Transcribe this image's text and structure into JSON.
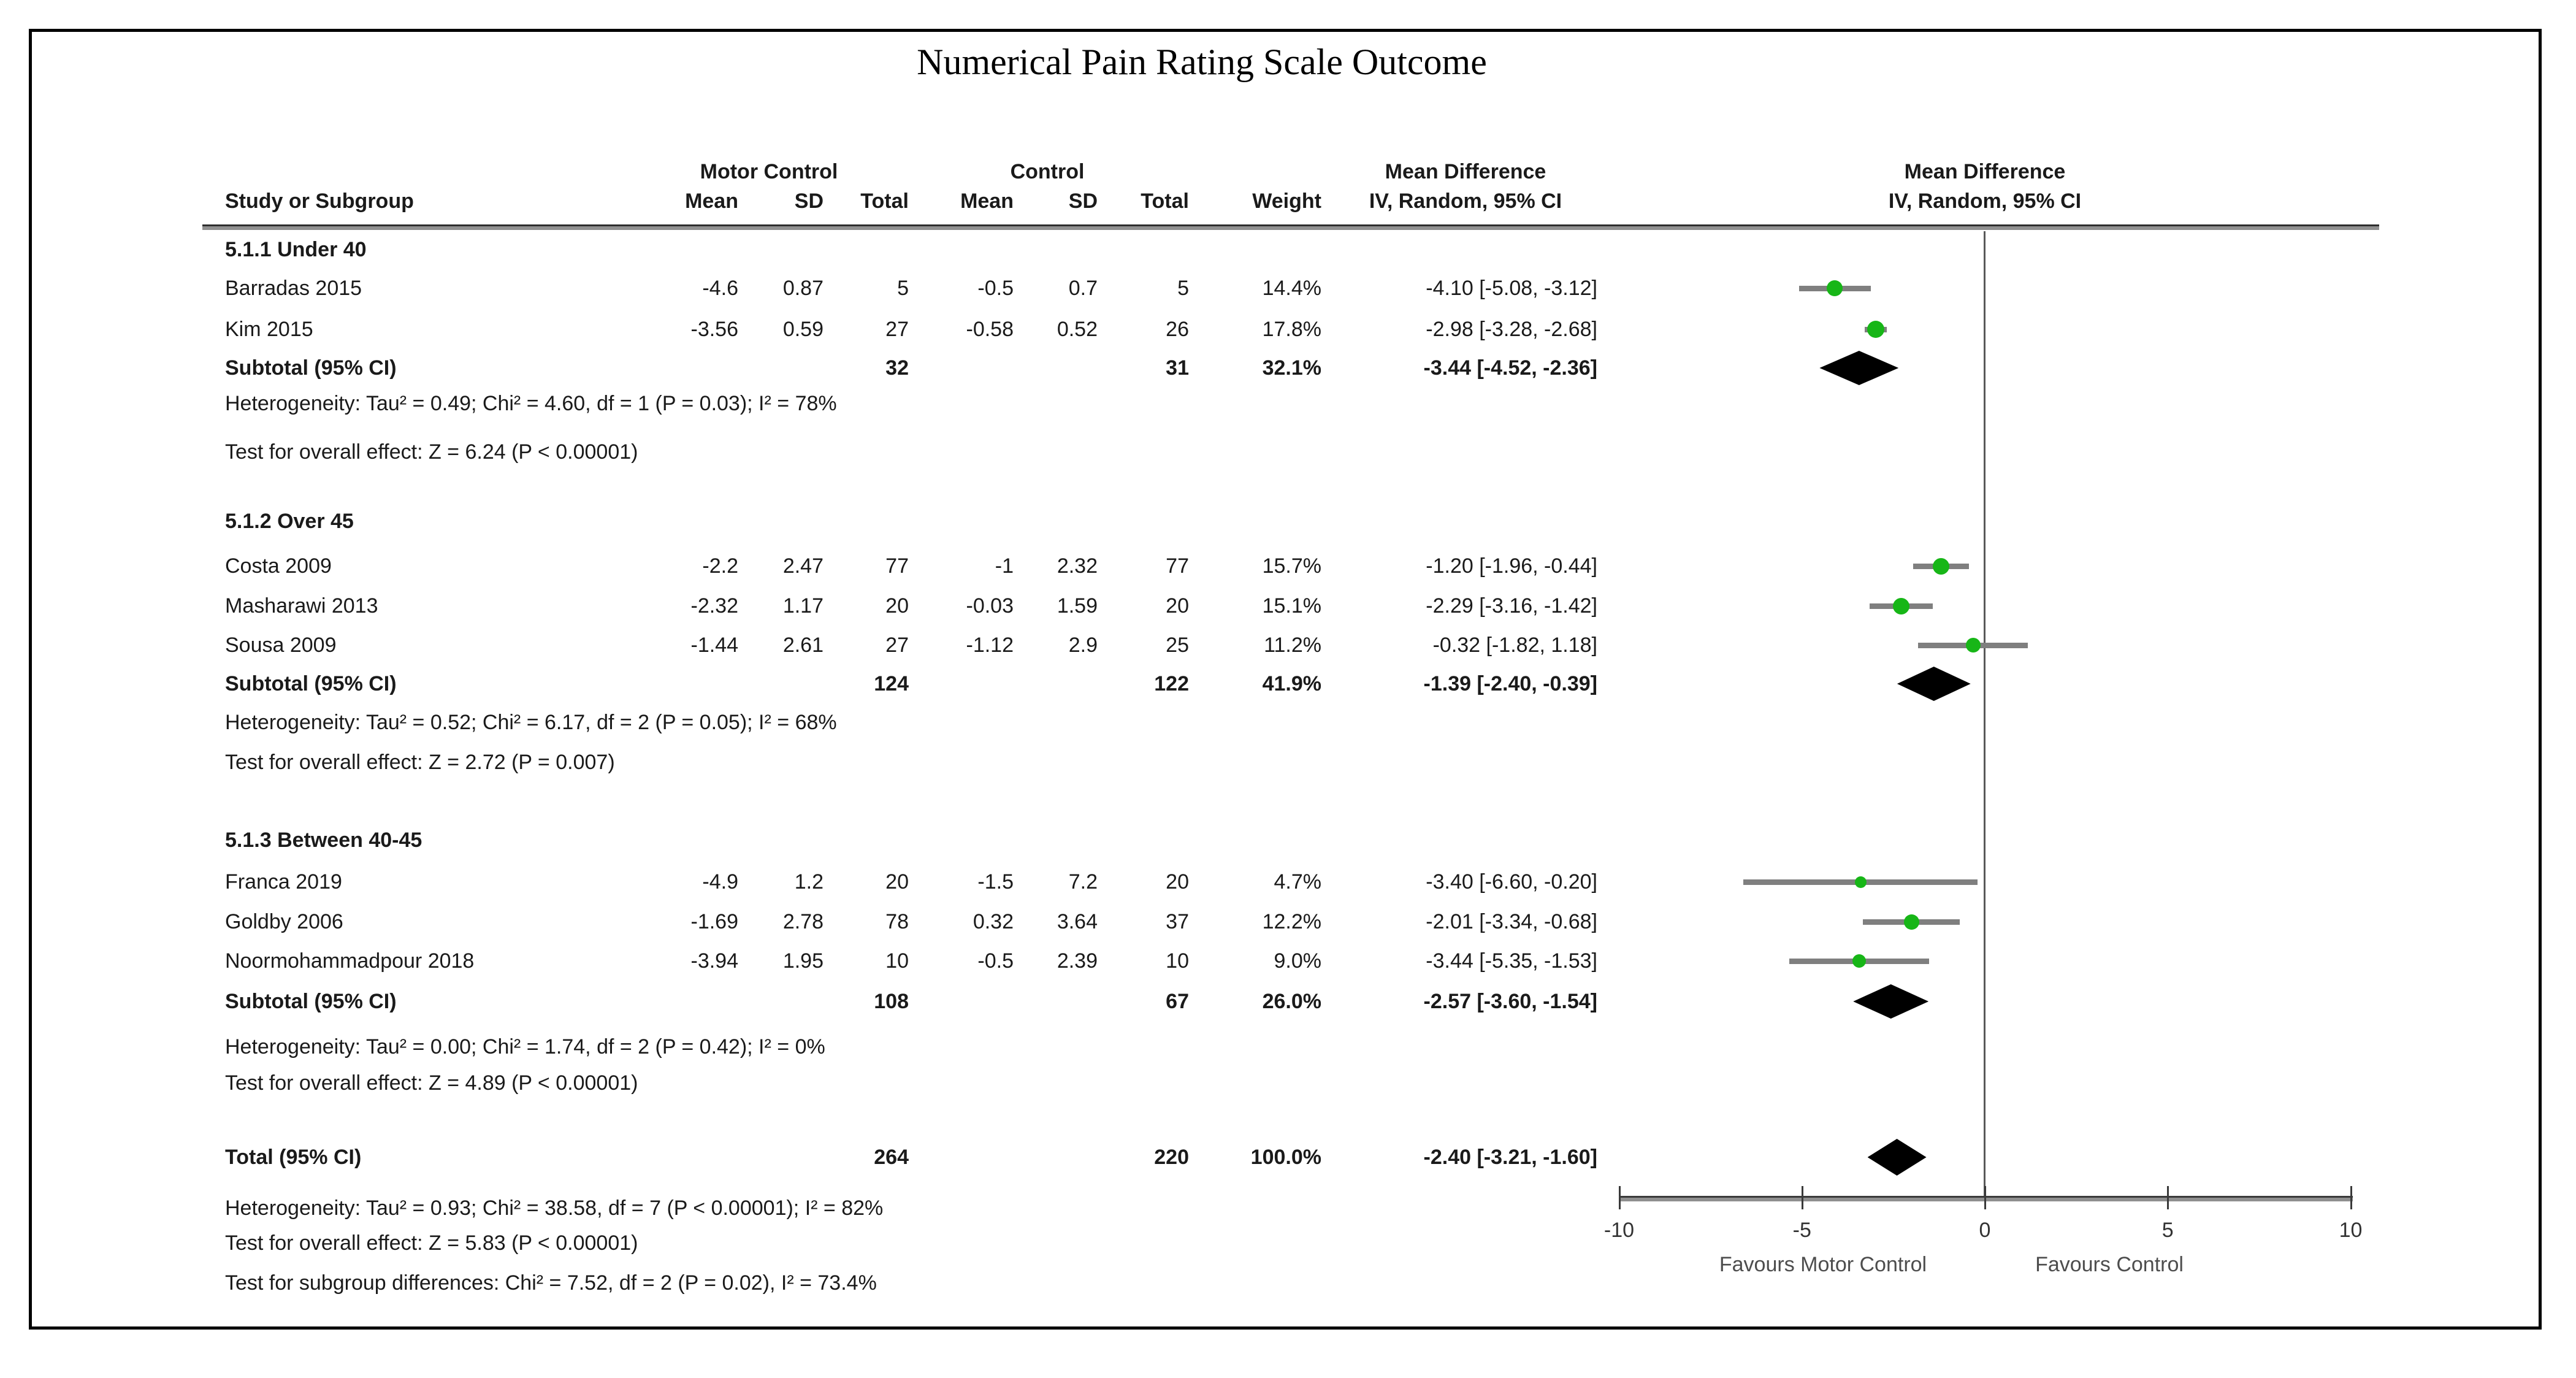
{
  "title": "Numerical Pain Rating Scale Outcome",
  "table": {
    "group_headers": {
      "motor_control": "Motor Control",
      "control": "Control",
      "mean_difference": "Mean Difference"
    },
    "col_headers": {
      "study": "Study or Subgroup",
      "mc_mean": "Mean",
      "mc_sd": "SD",
      "mc_total": "Total",
      "c_mean": "Mean",
      "c_sd": "SD",
      "c_total": "Total",
      "weight": "Weight",
      "iv": "IV, Random, 95% CI"
    }
  },
  "plot": {
    "header_line1": "Mean Difference",
    "header_line2": "IV, Random, 95% CI",
    "favours_left": "Favours Motor Control",
    "favours_right": "Favours Control"
  },
  "colors": {
    "marker_green": "#17b617",
    "ci_line_gray": "#7f7f7f",
    "diamond_black": "#000000",
    "rule_gray": "#8f8f8f"
  },
  "chart_data": {
    "type": "scatter",
    "variant": "forest-plot-mean-difference",
    "title": "Numerical Pain Rating Scale Outcome",
    "x_axis": {
      "min": -10,
      "max": 10,
      "ticks": [
        -10,
        -5,
        0,
        5,
        10
      ],
      "tick_labels": [
        "-10",
        "-5",
        "0",
        "5",
        "10"
      ]
    },
    "legend": {
      "favours_left": "Favours Motor Control",
      "favours_right": "Favours Control"
    },
    "subgroups": [
      {
        "label": "5.1.1 Under 40",
        "studies": [
          {
            "study": "Barradas 2015",
            "mc_mean": "-4.6",
            "mc_sd": "0.87",
            "mc_total": "5",
            "c_mean": "-0.5",
            "c_sd": "0.7",
            "c_total": "5",
            "weight": "14.4%",
            "weight_val": 14.4,
            "ci_text": "-4.10 [-5.08, -3.12]",
            "est": -4.1,
            "lo": -5.08,
            "hi": -3.12
          },
          {
            "study": "Kim 2015",
            "mc_mean": "-3.56",
            "mc_sd": "0.59",
            "mc_total": "27",
            "c_mean": "-0.58",
            "c_sd": "0.52",
            "c_total": "26",
            "weight": "17.8%",
            "weight_val": 17.8,
            "ci_text": "-2.98 [-3.28, -2.68]",
            "est": -2.98,
            "lo": -3.28,
            "hi": -2.68
          }
        ],
        "subtotal": {
          "label": "Subtotal (95% CI)",
          "mc_total": "32",
          "c_total": "31",
          "weight": "32.1%",
          "ci_text": "-3.44 [-4.52, -2.36]",
          "est": -3.44,
          "lo": -4.52,
          "hi": -2.36
        },
        "heterogeneity": "Heterogeneity: Tau² = 0.49; Chi² = 4.60, df = 1 (P = 0.03); I² = 78%",
        "overall_test": "Test for overall effect: Z = 6.24 (P < 0.00001)"
      },
      {
        "label": "5.1.2 Over 45",
        "studies": [
          {
            "study": "Costa 2009",
            "mc_mean": "-2.2",
            "mc_sd": "2.47",
            "mc_total": "77",
            "c_mean": "-1",
            "c_sd": "2.32",
            "c_total": "77",
            "weight": "15.7%",
            "weight_val": 15.7,
            "ci_text": "-1.20 [-1.96, -0.44]",
            "est": -1.2,
            "lo": -1.96,
            "hi": -0.44
          },
          {
            "study": "Masharawi 2013",
            "mc_mean": "-2.32",
            "mc_sd": "1.17",
            "mc_total": "20",
            "c_mean": "-0.03",
            "c_sd": "1.59",
            "c_total": "20",
            "weight": "15.1%",
            "weight_val": 15.1,
            "ci_text": "-2.29 [-3.16, -1.42]",
            "est": -2.29,
            "lo": -3.16,
            "hi": -1.42
          },
          {
            "study": "Sousa 2009",
            "mc_mean": "-1.44",
            "mc_sd": "2.61",
            "mc_total": "27",
            "c_mean": "-1.12",
            "c_sd": "2.9",
            "c_total": "25",
            "weight": "11.2%",
            "weight_val": 11.2,
            "ci_text": "-0.32 [-1.82, 1.18]",
            "est": -0.32,
            "lo": -1.82,
            "hi": 1.18
          }
        ],
        "subtotal": {
          "label": "Subtotal (95% CI)",
          "mc_total": "124",
          "c_total": "122",
          "weight": "41.9%",
          "ci_text": "-1.39 [-2.40, -0.39]",
          "est": -1.39,
          "lo": -2.4,
          "hi": -0.39
        },
        "heterogeneity": "Heterogeneity: Tau² = 0.52; Chi² = 6.17, df = 2 (P = 0.05); I² = 68%",
        "overall_test": "Test for overall effect: Z = 2.72 (P = 0.007)"
      },
      {
        "label": "5.1.3 Between 40-45",
        "studies": [
          {
            "study": "Franca 2019",
            "mc_mean": "-4.9",
            "mc_sd": "1.2",
            "mc_total": "20",
            "c_mean": "-1.5",
            "c_sd": "7.2",
            "c_total": "20",
            "weight": "4.7%",
            "weight_val": 4.7,
            "ci_text": "-3.40 [-6.60, -0.20]",
            "est": -3.4,
            "lo": -6.6,
            "hi": -0.2
          },
          {
            "study": "Goldby 2006",
            "mc_mean": "-1.69",
            "mc_sd": "2.78",
            "mc_total": "78",
            "c_mean": "0.32",
            "c_sd": "3.64",
            "c_total": "37",
            "weight": "12.2%",
            "weight_val": 12.2,
            "ci_text": "-2.01 [-3.34, -0.68]",
            "est": -2.01,
            "lo": -3.34,
            "hi": -0.68
          },
          {
            "study": "Noormohammadpour 2018",
            "mc_mean": "-3.94",
            "mc_sd": "1.95",
            "mc_total": "10",
            "c_mean": "-0.5",
            "c_sd": "2.39",
            "c_total": "10",
            "weight": "9.0%",
            "weight_val": 9.0,
            "ci_text": "-3.44 [-5.35, -1.53]",
            "est": -3.44,
            "lo": -5.35,
            "hi": -1.53
          }
        ],
        "subtotal": {
          "label": "Subtotal (95% CI)",
          "mc_total": "108",
          "c_total": "67",
          "weight": "26.0%",
          "ci_text": "-2.57 [-3.60, -1.54]",
          "est": -2.57,
          "lo": -3.6,
          "hi": -1.54
        },
        "heterogeneity": "Heterogeneity: Tau² = 0.00; Chi² = 1.74, df = 2 (P = 0.42); I² = 0%",
        "overall_test": "Test for overall effect: Z = 4.89 (P < 0.00001)"
      }
    ],
    "total": {
      "label": "Total (95% CI)",
      "mc_total": "264",
      "c_total": "220",
      "weight": "100.0%",
      "ci_text": "-2.40 [-3.21, -1.60]",
      "est": -2.4,
      "lo": -3.21,
      "hi": -1.6
    },
    "total_heterogeneity": "Heterogeneity: Tau² = 0.93; Chi² = 38.58, df = 7 (P < 0.00001); I² = 82%",
    "total_test": "Test for overall effect: Z = 5.83 (P < 0.00001)",
    "subgroup_test": "Test for subgroup differences: Chi² = 7.52, df = 2 (P = 0.02), I² = 73.4%"
  }
}
